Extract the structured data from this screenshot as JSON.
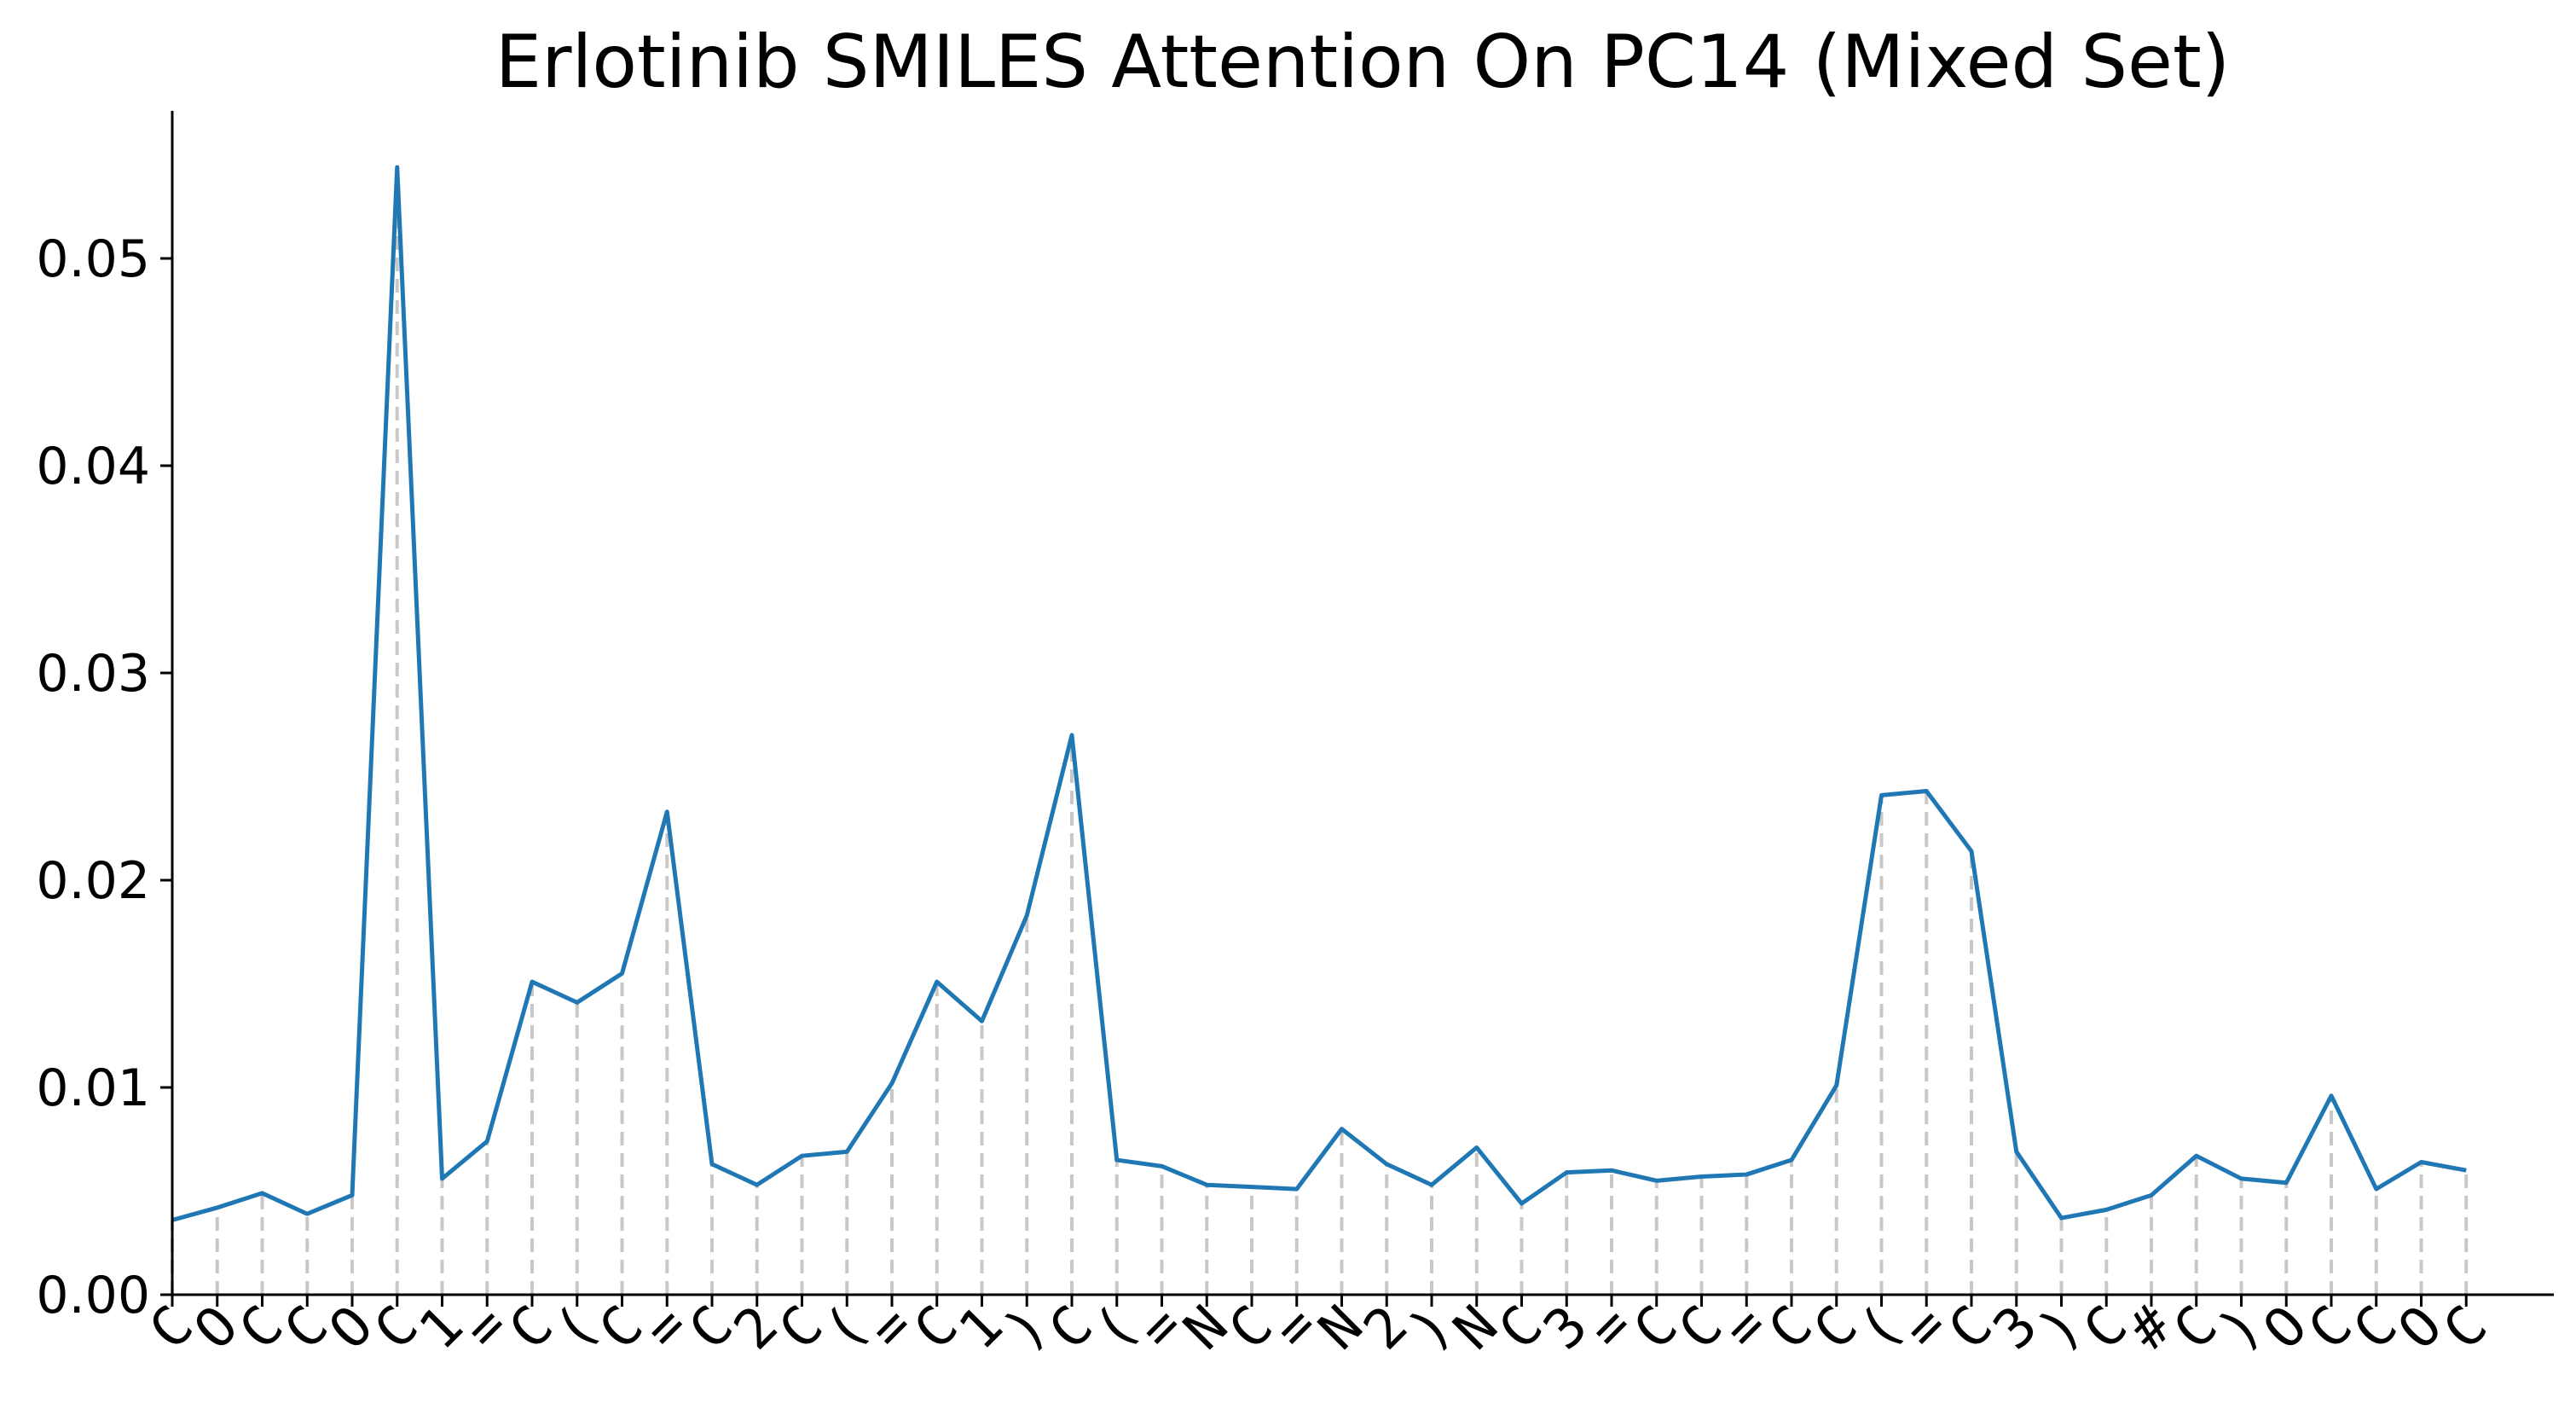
{
  "chart_data": {
    "type": "line",
    "title": "Erlotinib SMILES Attention On PC14 (Mixed Set)",
    "xlabel": "",
    "ylabel": "",
    "ylim": [
      0,
      0.057
    ],
    "yticks": [
      "0.00",
      "0.01",
      "0.02",
      "0.03",
      "0.04",
      "0.05"
    ],
    "grid": false,
    "colors": {
      "line": "#1f77b4",
      "stems": "#c8c8c8",
      "axes": "#000000"
    },
    "categories": [
      "C",
      "O",
      "C",
      "C",
      "O",
      "C",
      "1",
      "=",
      "C",
      "(",
      "C",
      "=",
      "C",
      "2",
      "C",
      "(",
      "=",
      "C",
      "1",
      ")",
      "C",
      "(",
      "=",
      "N",
      "C",
      "=",
      "N",
      "2",
      ")",
      "N",
      "C",
      "3",
      "=",
      "C",
      "C",
      "=",
      "C",
      "C",
      "(",
      "=",
      "C",
      "3",
      ")",
      "C",
      "#",
      "C",
      ")",
      "O",
      "C",
      "C",
      "O",
      "C"
    ],
    "series": [
      {
        "values": [
          0.0036,
          0.0042,
          0.0049,
          0.0039,
          0.0048,
          0.0544,
          0.0056,
          0.0074,
          0.0151,
          0.0141,
          0.0155,
          0.0233,
          0.0063,
          0.0053,
          0.0067,
          0.0069,
          0.0102,
          0.0151,
          0.0132,
          0.0183,
          0.027,
          0.0065,
          0.0062,
          0.0053,
          0.0052,
          0.0051,
          0.008,
          0.0063,
          0.0053,
          0.0071,
          0.0044,
          0.0059,
          0.006,
          0.0055,
          0.0057,
          0.0058,
          0.0065,
          0.0101,
          0.0241,
          0.0243,
          0.0214,
          0.0069,
          0.0037,
          0.0041,
          0.0048,
          0.0067,
          0.0056,
          0.0054,
          0.0096,
          0.0051,
          0.0064,
          0.006
        ]
      }
    ]
  }
}
